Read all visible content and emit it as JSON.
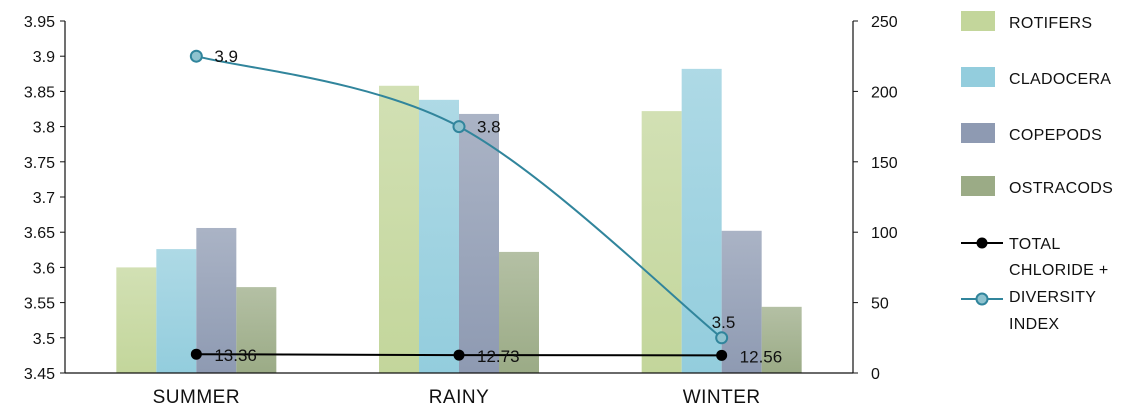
{
  "chart_data": {
    "type": "bar",
    "categories": [
      "SUMMER",
      "RAINY",
      "WINTER"
    ],
    "y_left": {
      "min": 3.45,
      "max": 3.95,
      "step": 0.05,
      "ticks": [
        "3.45",
        "3.5",
        "3.55",
        "3.6",
        "3.65",
        "3.7",
        "3.75",
        "3.8",
        "3.85",
        "3.9",
        "3.95"
      ]
    },
    "y_right": {
      "min": 0,
      "max": 250,
      "step": 50,
      "ticks": [
        "0",
        "50",
        "100",
        "150",
        "200",
        "250"
      ]
    },
    "series": [
      {
        "name": "ROTIFERS",
        "axis": "right",
        "type": "bar",
        "color": "#c3d69b",
        "values": [
          75,
          204,
          186
        ]
      },
      {
        "name": "CLADOCERA",
        "axis": "right",
        "type": "bar",
        "color": "#93cddd",
        "values": [
          88,
          194,
          216
        ]
      },
      {
        "name": "COPEPODS",
        "axis": "right",
        "type": "bar",
        "color": "#8e9ab2",
        "values": [
          103,
          184,
          101
        ]
      },
      {
        "name": "OSTRACODS",
        "axis": "right",
        "type": "bar",
        "color": "#9bab86",
        "values": [
          61,
          86,
          47
        ]
      },
      {
        "name": "TOTAL CHLORIDE +",
        "axis": "right",
        "type": "line",
        "color": "#000000",
        "values": [
          13.36,
          12.73,
          12.56
        ],
        "labels": [
          "13.36",
          "12.73",
          "12.56"
        ]
      },
      {
        "name": "DIVERSITY INDEX",
        "axis": "left",
        "type": "line",
        "color": "#31859c",
        "values": [
          3.9,
          3.8,
          3.5
        ],
        "labels": [
          "3.9",
          "3.8",
          "3.5"
        ]
      }
    ],
    "legend_position": "right",
    "grid": false
  }
}
